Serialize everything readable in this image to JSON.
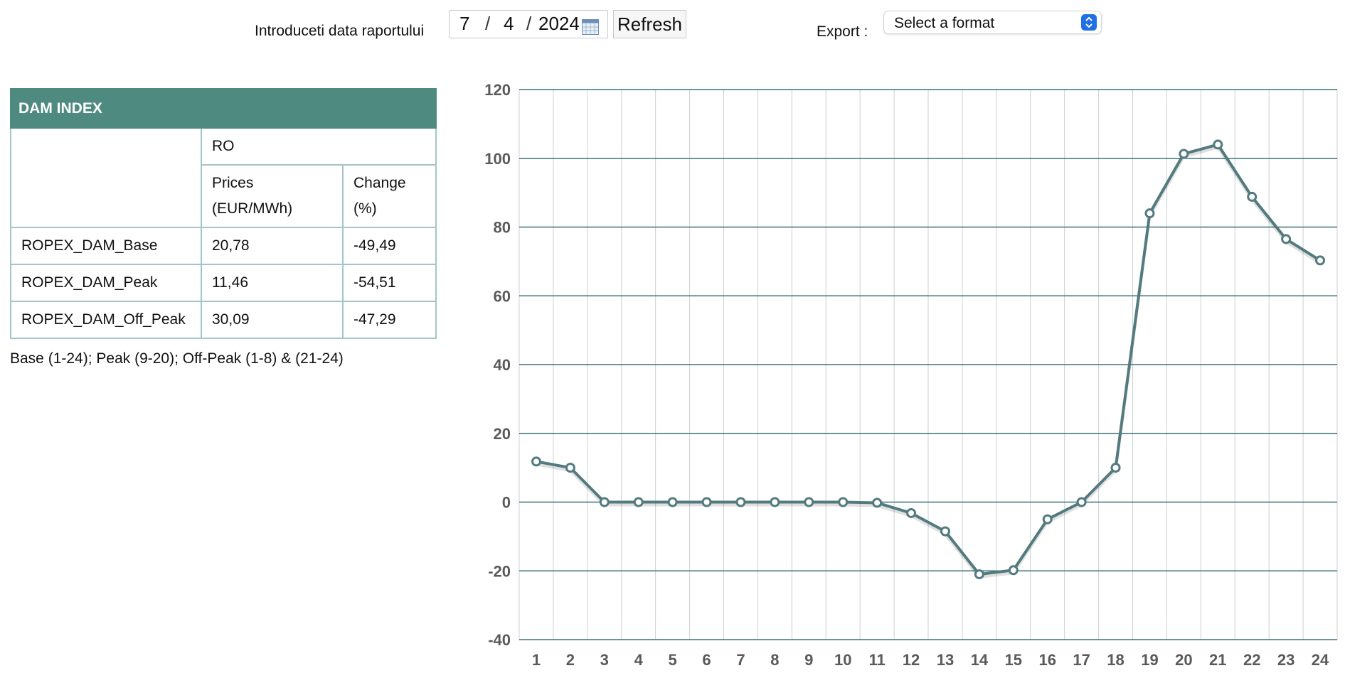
{
  "header": {
    "date_label": "Introduceti data raportului",
    "date": {
      "day": "7",
      "month": "4",
      "year": "2024",
      "separator": "/"
    },
    "calendar_icon": "calendar-icon",
    "refresh_label": "Refresh",
    "export_label": "Export :",
    "format_select": {
      "value": "Select a format",
      "icon": "up-down-chevron-icon"
    }
  },
  "table": {
    "title": "DAM INDEX",
    "region": "RO",
    "col_prices": [
      "Prices",
      "(EUR/MWh)"
    ],
    "col_change": [
      "Change",
      "(%)"
    ],
    "rows": [
      {
        "name": "ROPEX_DAM_Base",
        "price": "20,78",
        "change": "-49,49"
      },
      {
        "name": "ROPEX_DAM_Peak",
        "price": "11,46",
        "change": "-54,51"
      },
      {
        "name": "ROPEX_DAM_Off_Peak",
        "price": "30,09",
        "change": "-47,29"
      }
    ],
    "note": "Base (1-24); Peak (9-20); Off-Peak (1-8) & (21-24)"
  },
  "colors": {
    "header_bg": "#4f8a80",
    "table_border": "#a4c4c8",
    "line": "#527a7f",
    "grid_h": "#3e7077",
    "grid_v": "#c9d0d2",
    "select_arrow": "#1f6fe5"
  },
  "chart_data": {
    "type": "line",
    "x": [
      1,
      2,
      3,
      4,
      5,
      6,
      7,
      8,
      9,
      10,
      11,
      12,
      13,
      14,
      15,
      16,
      17,
      18,
      19,
      20,
      21,
      22,
      23,
      24
    ],
    "series": [
      {
        "values": [
          11.8,
          10.0,
          0,
          0,
          0,
          0,
          0,
          0,
          0,
          0,
          -0.2,
          -3.2,
          -8.5,
          -21.0,
          -19.8,
          -5.0,
          0,
          10.0,
          84.0,
          101.3,
          104.0,
          88.8,
          76.5,
          70.3
        ]
      }
    ],
    "ylim": [
      -40,
      120
    ],
    "yticks": [
      -40,
      -20,
      0,
      20,
      40,
      60,
      80,
      100,
      120
    ],
    "grid": true,
    "legend": "none",
    "title": "",
    "xlabel": "",
    "ylabel": ""
  }
}
